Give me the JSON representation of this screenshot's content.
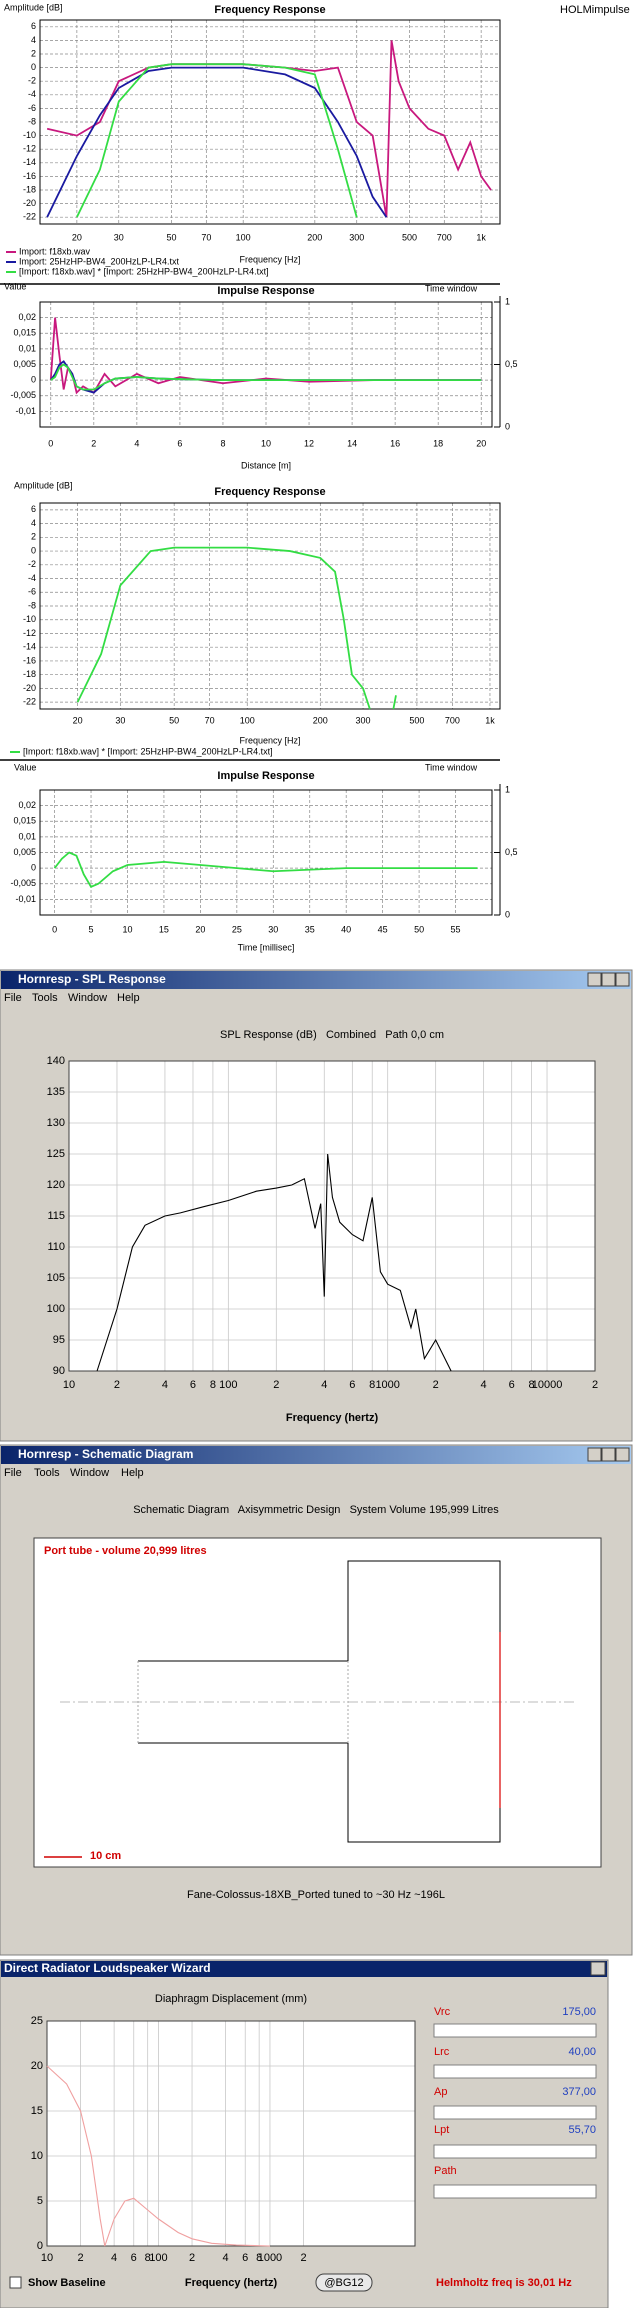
{
  "chart_data": [
    {
      "type": "line",
      "title": "Frequency Response",
      "y_label": "Amplitude [dB]",
      "x_label": "Frequency [Hz]",
      "xscale": "log",
      "grid": true,
      "x": [
        15,
        20,
        25,
        30,
        40,
        50,
        70,
        100,
        150,
        200,
        250,
        300,
        350,
        400,
        420,
        450,
        500,
        600,
        700,
        800,
        900,
        1000,
        1100
      ],
      "series": [
        {
          "name": "Import: f18xb.wav",
          "color": "#c8187e",
          "values": [
            -9,
            -10,
            -8,
            -2,
            0,
            0.5,
            0.5,
            0.5,
            0,
            -0.5,
            0,
            -8,
            -10,
            -22,
            4,
            -2,
            -6,
            -9,
            -10,
            -15,
            -11,
            -16,
            -18
          ]
        },
        {
          "name": "Import: 25HzHP-BW4_200HzLP-LR4.txt",
          "color": "#1a1aa0",
          "values": [
            -22,
            -13,
            -7,
            -3,
            -0.5,
            0,
            0,
            0,
            -1,
            -3,
            -8,
            -13,
            -19,
            -22,
            null,
            null,
            null,
            null,
            null,
            null,
            null,
            null,
            null
          ]
        },
        {
          "name": "[Import: f18xb.wav] * [Import: 25HzHP-BW4_200HzLP-LR4.txt]",
          "color": "#33dd44",
          "values": [
            null,
            -22,
            -15,
            -5,
            0,
            0.5,
            0.5,
            0.5,
            0,
            -1,
            -12,
            -22,
            null,
            null,
            null,
            null,
            null,
            null,
            null,
            null,
            null,
            null,
            null
          ]
        }
      ],
      "xlim": [
        14,
        1200
      ],
      "xticks": [
        20,
        30,
        50,
        70,
        100,
        200,
        300,
        500,
        700,
        {
          "value": 1000,
          "label": "1k"
        }
      ],
      "ylim": [
        -23,
        7
      ],
      "yticks": [
        6,
        4,
        2,
        0,
        -2,
        -4,
        -6,
        -8,
        -10,
        -12,
        -14,
        -16,
        -18,
        -20,
        -22
      ]
    },
    {
      "type": "line",
      "title": "Impulse Response",
      "y_label": "Value",
      "y2_label": "Time window",
      "x_label": "Distance [m]",
      "grid": true,
      "x": [
        0,
        0.2,
        0.4,
        0.6,
        0.8,
        1,
        1.2,
        1.5,
        2,
        2.5,
        3,
        4,
        5,
        6,
        8,
        10,
        12,
        15,
        20
      ],
      "series": [
        {
          "color": "#c8187e",
          "values": [
            0,
            0.02,
            0.008,
            -0.003,
            0.004,
            0.002,
            -0.004,
            -0.002,
            -0.004,
            0.002,
            -0.002,
            0.002,
            -0.001,
            0.001,
            -0.001,
            0.0005,
            -0.0005,
            0,
            0
          ]
        },
        {
          "color": "#1a1aa0",
          "values": [
            0,
            0.002,
            0.005,
            0.006,
            0.004,
            0.002,
            -0.002,
            -0.003,
            -0.004,
            -0.001,
            0.0005,
            0.001,
            0.0005,
            0.0003,
            0,
            0,
            0,
            0,
            0
          ]
        },
        {
          "color": "#33dd44",
          "values": [
            0,
            0.001,
            0.004,
            0.005,
            0.004,
            0.001,
            -0.002,
            -0.003,
            -0.003,
            -0.001,
            0.0005,
            0.001,
            0.0005,
            0.0003,
            0,
            0,
            0,
            0,
            0
          ]
        }
      ],
      "xlim": [
        -0.5,
        20.5
      ],
      "xticks": [
        0,
        2,
        4,
        6,
        8,
        10,
        12,
        14,
        16,
        18,
        20
      ],
      "ylim": [
        -0.015,
        0.025
      ],
      "yticks": [
        {
          "value": 0.02,
          "label": "0,02"
        },
        {
          "value": 0.015,
          "label": "0,015"
        },
        {
          "value": 0.01,
          "label": "0,01"
        },
        {
          "value": 0.005,
          "label": "0,005"
        },
        0,
        {
          "value": -0.005,
          "label": "-0,005"
        },
        {
          "value": -0.01,
          "label": "-0,01"
        }
      ],
      "y2lim": [
        0,
        1
      ],
      "y2ticks": [
        1,
        {
          "value": 0.5,
          "label": "0,5"
        },
        0
      ]
    },
    {
      "type": "line",
      "title": "Frequency Response",
      "y_label": "Amplitude [dB]",
      "x_label": "Frequency [Hz]",
      "xscale": "log",
      "grid": true,
      "x": [
        15,
        20,
        25,
        30,
        40,
        50,
        70,
        100,
        150,
        200,
        230,
        250,
        270,
        300,
        320,
        350,
        400,
        410
      ],
      "series": [
        {
          "name": "[Import: f18xb.wav] * [Import: 25HzHP-BW4_200HzLP-LR4.txt]",
          "color": "#33dd44",
          "values": [
            null,
            -22,
            -15,
            -5,
            0,
            0.5,
            0.5,
            0.5,
            0,
            -1,
            -3,
            -10,
            -18,
            -20,
            -23,
            null,
            -23,
            -21
          ]
        }
      ],
      "xlim": [
        14,
        1100
      ],
      "xticks": [
        20,
        30,
        50,
        70,
        100,
        200,
        300,
        500,
        700,
        {
          "value": 1000,
          "label": "1k"
        }
      ],
      "ylim": [
        -23,
        7
      ],
      "yticks": [
        6,
        4,
        2,
        0,
        -2,
        -4,
        -6,
        -8,
        -10,
        -12,
        -14,
        -16,
        -18,
        -20,
        -22
      ]
    },
    {
      "type": "line",
      "title": "Impulse Response",
      "y_label": "Value",
      "y2_label": "Time window",
      "x_label": "Time [millisec]",
      "grid": true,
      "x": [
        0,
        1,
        2,
        3,
        4,
        5,
        6,
        8,
        10,
        15,
        20,
        25,
        30,
        40,
        50,
        58
      ],
      "series": [
        {
          "color": "#33dd44",
          "values": [
            0,
            0.003,
            0.005,
            0.004,
            -0.002,
            -0.006,
            -0.005,
            -0.001,
            0.001,
            0.002,
            0.001,
            0,
            -0.001,
            0,
            0,
            0
          ]
        }
      ],
      "xlim": [
        -2,
        60
      ],
      "xticks": [
        0,
        5,
        10,
        15,
        20,
        25,
        30,
        35,
        40,
        45,
        50,
        55
      ],
      "ylim": [
        -0.015,
        0.025
      ],
      "yticks": [
        {
          "value": 0.02,
          "label": "0,02"
        },
        {
          "value": 0.015,
          "label": "0,015"
        },
        {
          "value": 0.01,
          "label": "0,01"
        },
        {
          "value": 0.005,
          "label": "0,005"
        },
        0,
        {
          "value": -0.005,
          "label": "-0,005"
        },
        {
          "value": -0.01,
          "label": "-0,01"
        }
      ],
      "y2lim": [
        0,
        1
      ],
      "y2ticks": [
        1,
        {
          "value": 0.5,
          "label": "0,5"
        },
        0
      ]
    },
    {
      "type": "line",
      "title": "SPL Response (dB)   Combined   Path 0,0 cm",
      "x_label": "Frequency (hertz)",
      "xscale": "log",
      "grid": true,
      "x": [
        15,
        20,
        25,
        30,
        40,
        50,
        70,
        100,
        150,
        200,
        250,
        300,
        350,
        380,
        400,
        420,
        450,
        500,
        600,
        700,
        800,
        900,
        1000,
        1200,
        1400,
        1500,
        1700,
        2000,
        2500
      ],
      "series": [
        {
          "color": "#000000",
          "values": [
            90,
            100,
            110,
            113.5,
            115,
            115.5,
            116.5,
            117.5,
            119,
            119.5,
            120,
            121,
            113,
            117,
            102,
            125,
            118,
            114,
            112,
            111,
            118,
            106,
            104,
            103,
            97,
            100,
            92,
            95,
            90
          ]
        }
      ],
      "xlim": [
        10,
        20000
      ],
      "xticks": [
        10,
        {
          "value": 20,
          "label": "2"
        },
        {
          "value": 40,
          "label": "4"
        },
        {
          "value": 60,
          "label": "6"
        },
        {
          "value": 80,
          "label": "8"
        },
        100,
        {
          "value": 200,
          "label": "2"
        },
        {
          "value": 400,
          "label": "4"
        },
        {
          "value": 600,
          "label": "6"
        },
        {
          "value": 800,
          "label": "8"
        },
        1000,
        {
          "value": 2000,
          "label": "2"
        },
        {
          "value": 4000,
          "label": "4"
        },
        {
          "value": 6000,
          "label": "6"
        },
        {
          "value": 8000,
          "label": "8"
        },
        10000,
        {
          "value": 20000,
          "label": "2"
        }
      ],
      "ylim": [
        90,
        140
      ],
      "yticks": [
        90,
        95,
        100,
        105,
        110,
        115,
        120,
        125,
        130,
        135,
        140
      ]
    },
    {
      "type": "line",
      "title": "Diaphragm Displacement (mm)",
      "x_label": "Frequency (hertz)",
      "xscale": "log",
      "grid": true,
      "x": [
        10,
        15,
        20,
        25,
        30,
        33,
        40,
        50,
        60,
        80,
        100,
        150,
        200,
        300,
        500,
        1000
      ],
      "series": [
        {
          "color": "#f0a0a0",
          "values": [
            20,
            18,
            15,
            10,
            3,
            0,
            3,
            5,
            5.3,
            4,
            3,
            1.5,
            0.8,
            0.3,
            0.1,
            0
          ]
        }
      ],
      "xlim": [
        10,
        20000
      ],
      "xticks": [
        10,
        {
          "value": 20,
          "label": "2"
        },
        {
          "value": 40,
          "label": "4"
        },
        {
          "value": 60,
          "label": "6"
        },
        {
          "value": 80,
          "label": "8"
        },
        100,
        {
          "value": 200,
          "label": "2"
        },
        {
          "value": 400,
          "label": "4"
        },
        {
          "value": 600,
          "label": "6"
        },
        {
          "value": 800,
          "label": "8"
        },
        1000,
        {
          "value": 2000,
          "label": "2"
        }
      ],
      "ylim": [
        0,
        25
      ],
      "yticks": [
        0,
        5,
        10,
        15,
        20,
        25
      ]
    }
  ],
  "holm": {
    "app_name": "HOLMimpulse"
  },
  "spl_window": {
    "title": "Hornresp - SPL Response",
    "menu": [
      "File",
      "Tools",
      "Window",
      "Help"
    ]
  },
  "schematic_window": {
    "title": "Hornresp - Schematic Diagram",
    "menu": [
      "File",
      "Tools",
      "Window",
      "Help"
    ],
    "heading": "Schematic Diagram   Axisymmetric Design   System Volume 195,999 Litres",
    "port_label": "Port tube - volume 20,999 litres",
    "scale_label": "10 cm",
    "caption": "Fane-Colossus-18XB_Ported tuned to ~30 Hz ~196L"
  },
  "wizard": {
    "title": "Direct Radiator Loudspeaker Wizard",
    "params": [
      {
        "label": "Vrc",
        "value": "175,00"
      },
      {
        "label": "Lrc",
        "value": "40,00"
      },
      {
        "label": "Ap",
        "value": "377,00"
      },
      {
        "label": "Lpt",
        "value": "55,70"
      },
      {
        "label": "Path"
      }
    ],
    "show_baseline": "Show Baseline",
    "badge": "@BG12",
    "status": "Helmholtz freq is 30,01 Hz"
  }
}
